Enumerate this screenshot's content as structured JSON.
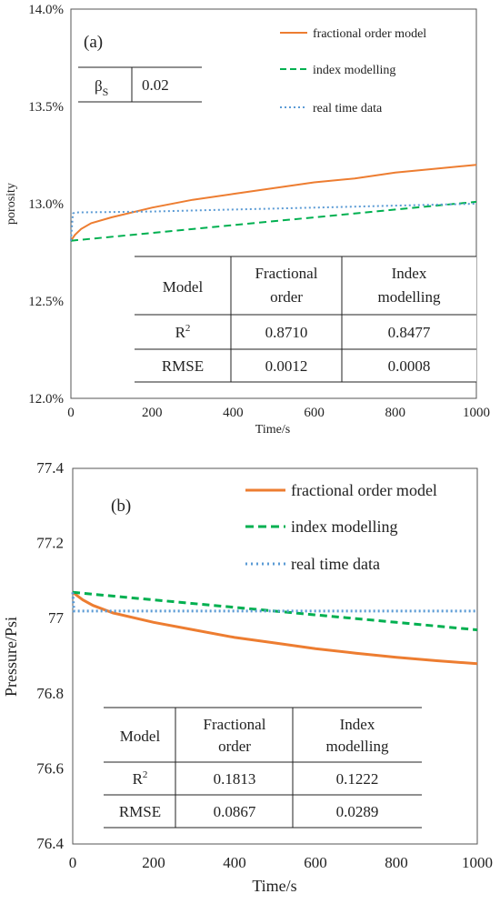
{
  "chart_data": [
    {
      "type": "line",
      "panel_label": "(a)",
      "xlabel": "Time/s",
      "ylabel": "porosity",
      "xlim": [
        0,
        1000
      ],
      "ylim": [
        12.0,
        14.0
      ],
      "x_ticks": [
        "0",
        "200",
        "400",
        "600",
        "800",
        "1000"
      ],
      "y_ticks": [
        "12.0%",
        "12.5%",
        "13.0%",
        "13.5%",
        "14.0%"
      ],
      "legend_placement": "top-right",
      "series": [
        {
          "name": "fractional order model",
          "color": "#ed7d31",
          "style": "solid",
          "x": [
            0,
            10,
            25,
            50,
            100,
            200,
            300,
            400,
            500,
            600,
            700,
            800,
            900,
            1000
          ],
          "y": [
            12.81,
            12.84,
            12.87,
            12.9,
            12.93,
            12.98,
            13.02,
            13.05,
            13.08,
            13.11,
            13.13,
            13.16,
            13.18,
            13.2
          ]
        },
        {
          "name": "index modelling",
          "color": "#00b050",
          "style": "dashed",
          "x": [
            0,
            200,
            400,
            600,
            800,
            1000
          ],
          "y": [
            12.81,
            12.85,
            12.89,
            12.93,
            12.97,
            13.01
          ]
        },
        {
          "name": "real time data",
          "color": "#5b9bd5",
          "style": "dotted",
          "x": [
            0,
            5,
            10,
            200,
            400,
            600,
            800,
            1000
          ],
          "y": [
            12.81,
            12.95,
            12.955,
            12.96,
            12.97,
            12.98,
            12.99,
            13.0
          ]
        }
      ],
      "param_table": {
        "label_base": "β",
        "label_sub": "S",
        "value": "0.02"
      },
      "metrics_table": {
        "headers": [
          "Model",
          "Fractional order",
          "Index modelling"
        ],
        "rows": [
          {
            "label_base": "R",
            "label_sup": "2",
            "values": [
              "0.8710",
              "0.8477"
            ]
          },
          {
            "label_base": "RMSE",
            "label_sup": "",
            "values": [
              "0.0012",
              "0.0008"
            ]
          }
        ]
      }
    },
    {
      "type": "line",
      "panel_label": "(b)",
      "xlabel": "Time/s",
      "ylabel": "Pressure/Psi",
      "xlim": [
        0,
        1000
      ],
      "ylim": [
        76.4,
        77.4
      ],
      "x_ticks": [
        "0",
        "200",
        "400",
        "600",
        "800",
        "1000"
      ],
      "y_ticks": [
        "76.4",
        "76.6",
        "76.8",
        "77",
        "77.2",
        "77.4"
      ],
      "legend_placement": "top-right",
      "series": [
        {
          "name": "fractional order model",
          "color": "#ed7d31",
          "style": "solid",
          "x": [
            0,
            25,
            50,
            100,
            200,
            300,
            400,
            500,
            600,
            700,
            800,
            900,
            1000
          ],
          "y": [
            77.07,
            77.05,
            77.035,
            77.015,
            76.99,
            76.97,
            76.95,
            76.935,
            76.92,
            76.908,
            76.897,
            76.888,
            76.88
          ]
        },
        {
          "name": "index modelling",
          "color": "#00b050",
          "style": "dashed",
          "x": [
            0,
            200,
            400,
            600,
            800,
            1000
          ],
          "y": [
            77.07,
            77.05,
            77.03,
            77.01,
            76.99,
            76.97
          ]
        },
        {
          "name": "real time data",
          "color": "#5b9bd5",
          "style": "dotted",
          "x": [
            0,
            3,
            1000
          ],
          "y": [
            77.07,
            77.02,
            77.02
          ]
        }
      ],
      "metrics_table": {
        "headers": [
          "Model",
          "Fractional order",
          "Index modelling"
        ],
        "rows": [
          {
            "label_base": "R",
            "label_sup": "2",
            "values": [
              "0.1813",
              "0.1222"
            ]
          },
          {
            "label_base": "RMSE",
            "label_sup": "",
            "values": [
              "0.0867",
              "0.0289"
            ]
          }
        ]
      }
    }
  ]
}
